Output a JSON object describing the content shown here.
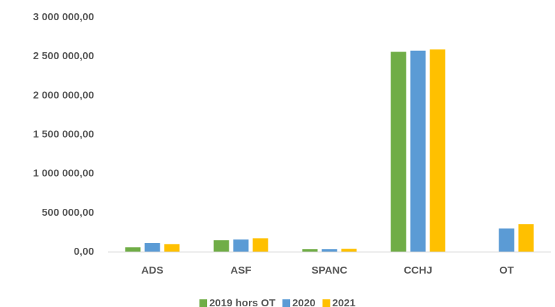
{
  "chart_data": {
    "type": "bar",
    "categories": [
      "ADS",
      "ASF",
      "SPANC",
      "CCHJ",
      "OT"
    ],
    "series": [
      {
        "name": "2019 hors OT",
        "color": "#70ad47",
        "values": [
          60000,
          150000,
          35000,
          2560000,
          null
        ]
      },
      {
        "name": "2020",
        "color": "#5b9bd5",
        "values": [
          115000,
          160000,
          35000,
          2575000,
          300000
        ]
      },
      {
        "name": "2021",
        "color": "#ffc000",
        "values": [
          100000,
          175000,
          40000,
          2590000,
          355000
        ]
      }
    ],
    "ylim": [
      0,
      3000000
    ],
    "yticks": [
      {
        "value": 0,
        "label": "0,00"
      },
      {
        "value": 500000,
        "label": "500 000,00"
      },
      {
        "value": 1000000,
        "label": "1 000 000,00"
      },
      {
        "value": 1500000,
        "label": "1 500 000,00"
      },
      {
        "value": 2000000,
        "label": "2 000 000,00"
      },
      {
        "value": 2500000,
        "label": "2 500 000,00"
      },
      {
        "value": 3000000,
        "label": "3 000 000,00"
      }
    ],
    "grid": false,
    "legend": "bottom"
  }
}
